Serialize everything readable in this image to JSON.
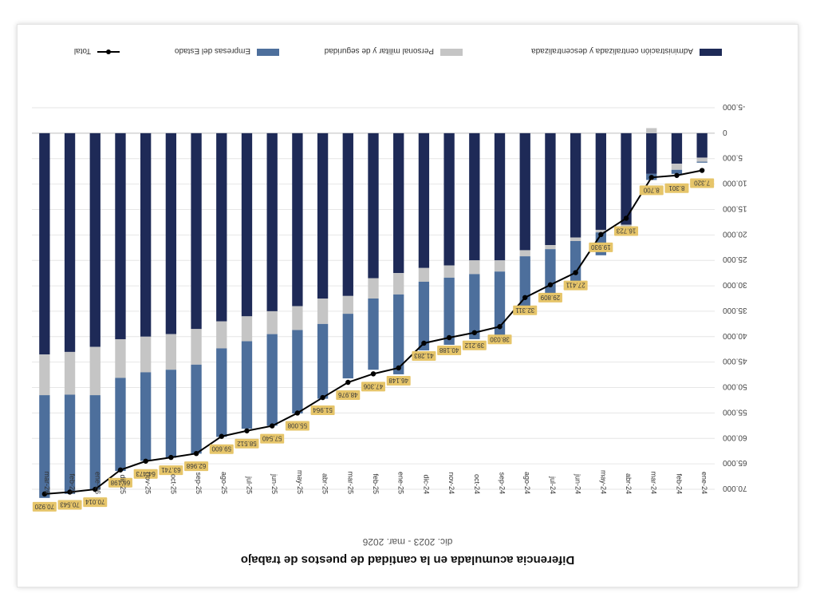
{
  "chart_data": {
    "type": "bar",
    "title": "Diferencia acumulada en la cantidad de puestos de trabajo",
    "subtitle": "dic. 2023 - mar. 2026",
    "categories": [
      "ene-24",
      "feb-24",
      "mar-24",
      "abr-24",
      "may-24",
      "jun-24",
      "jul-24",
      "ago-24",
      "sep-24",
      "oct-24",
      "nov-24",
      "dic-24",
      "ene-25",
      "feb-25",
      "mar-25",
      "abr-25",
      "may-25",
      "jun-25",
      "jul-25",
      "ago-25",
      "sep-25",
      "oct-25",
      "nov-25",
      "dic-25",
      "ene-26",
      "feb-26",
      "mar-26"
    ],
    "ylim": [
      -5000,
      70000
    ],
    "yticks": [
      -5000,
      0,
      5000,
      10000,
      15000,
      20000,
      25000,
      30000,
      35000,
      40000,
      45000,
      50000,
      55000,
      60000,
      65000,
      70000
    ],
    "ytick_labels": [
      "-5.000",
      "0",
      "5.000",
      "10.000",
      "15.000",
      "20.000",
      "25.000",
      "30.000",
      "35.000",
      "40.000",
      "45.000",
      "50.000",
      "55.000",
      "60.000",
      "65.000",
      "70.000"
    ],
    "grid": true,
    "legend_position": "top",
    "series": [
      {
        "name": "Administración centralizada y descentralizada",
        "color": "#1e2a57",
        "values": [
          4800,
          6000,
          8000,
          18000,
          19000,
          20500,
          22000,
          23000,
          25000,
          25000,
          26000,
          26500,
          27500,
          28500,
          32000,
          32500,
          34000,
          35000,
          36000,
          37000,
          38500,
          39500,
          40000,
          40500,
          42000,
          43000,
          43500
        ]
      },
      {
        "name": "Personal militar y de seguridad",
        "color": "#c5c5c5",
        "values": [
          800,
          1200,
          -1000,
          300,
          500,
          700,
          800,
          1200,
          2200,
          2700,
          2400,
          2700,
          4200,
          4000,
          3500,
          5000,
          4700,
          4500,
          4900,
          5300,
          7000,
          7000,
          7000,
          7600,
          9500,
          8400,
          8000
        ]
      },
      {
        "name": "Empresas del Estado",
        "color": "#4d6f9c",
        "values": [
          200,
          800,
          1200,
          500,
          4500,
          9200,
          9200,
          10800,
          12800,
          12800,
          13200,
          13500,
          15700,
          14000,
          12700,
          14700,
          16400,
          18000,
          17200,
          17400,
          17500,
          17300,
          17400,
          18300,
          18600,
          19500,
          20200
        ]
      }
    ],
    "total": {
      "name": "Total",
      "color": "#000000",
      "values": [
        7320,
        8301,
        8700,
        16723,
        19930,
        27411,
        29809,
        32311,
        38030,
        39212,
        40188,
        41283,
        46148,
        47306,
        48976,
        51964,
        55008,
        57540,
        58512,
        59600,
        62968,
        63741,
        64473,
        66198,
        70014,
        70543,
        70920
      ]
    },
    "data_labels": [
      "7.320",
      "8.301",
      "8.700",
      "16.723",
      "19.930",
      "27.411",
      "29.809",
      "32.311",
      "38.030",
      "39.212",
      "40.188",
      "41.283",
      "46.148",
      "47.306",
      "48.976",
      "51.964",
      "55.008",
      "57.540",
      "58.512",
      "59.600",
      "62.968",
      "63.741",
      "64.473",
      "66.198",
      "70.014",
      "70.543",
      "70.920"
    ]
  }
}
